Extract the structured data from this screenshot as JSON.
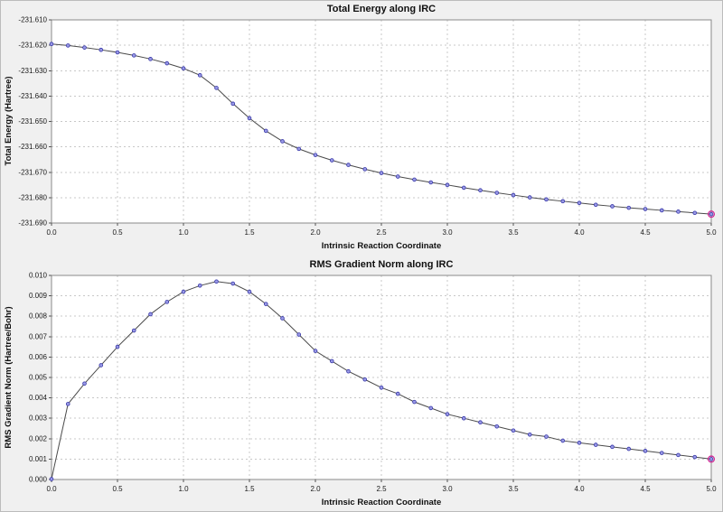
{
  "window": {
    "background": "#f0f0f0",
    "plot_background": "#ffffff",
    "grid_color": "#c8c8c8",
    "frame_color": "#8a8a8a"
  },
  "chart_data": [
    {
      "type": "line",
      "title": "Total Energy along IRC",
      "xlabel": "Intrinsic Reaction Coordinate",
      "ylabel": "Total Energy (Hartree)",
      "xlim": [
        0.0,
        5.0
      ],
      "ylim": [
        -231.69,
        -231.61
      ],
      "xticks": [
        0.0,
        0.5,
        1.0,
        1.5,
        2.0,
        2.5,
        3.0,
        3.5,
        4.0,
        4.5,
        5.0
      ],
      "yticks": [
        -231.69,
        -231.68,
        -231.67,
        -231.66,
        -231.65,
        -231.64,
        -231.63,
        -231.62,
        -231.61
      ],
      "xtick_decimals": 1,
      "ytick_decimals": 3,
      "grid": true,
      "legend": "none",
      "line_color": "#4a4a4a",
      "marker_fill": "#9a9ae6",
      "marker_edge": "#3838a8",
      "last_point_color": "#d02090",
      "x": [
        0.0,
        0.125,
        0.25,
        0.375,
        0.5,
        0.625,
        0.75,
        0.875,
        1.0,
        1.125,
        1.25,
        1.375,
        1.5,
        1.625,
        1.75,
        1.875,
        2.0,
        2.125,
        2.25,
        2.375,
        2.5,
        2.625,
        2.75,
        2.875,
        3.0,
        3.125,
        3.25,
        3.375,
        3.5,
        3.625,
        3.75,
        3.875,
        4.0,
        4.125,
        4.25,
        4.375,
        4.5,
        4.625,
        4.75,
        4.875,
        5.0
      ],
      "y": [
        -231.6195,
        -231.6201,
        -231.6209,
        -231.6218,
        -231.6228,
        -231.624,
        -231.6254,
        -231.6271,
        -231.6291,
        -231.6318,
        -231.6368,
        -231.643,
        -231.6487,
        -231.6537,
        -231.6578,
        -231.6608,
        -231.6632,
        -231.6653,
        -231.6671,
        -231.6688,
        -231.6703,
        -231.6717,
        -231.6729,
        -231.674,
        -231.675,
        -231.6761,
        -231.6771,
        -231.6781,
        -231.679,
        -231.6799,
        -231.6807,
        -231.6814,
        -231.6821,
        -231.6828,
        -231.6834,
        -231.684,
        -231.6845,
        -231.685,
        -231.6855,
        -231.686,
        -231.6865
      ]
    },
    {
      "type": "line",
      "title": "RMS Gradient Norm along IRC",
      "xlabel": "Intrinsic Reaction Coordinate",
      "ylabel": "RMS Gradient Norm (Hartree/Bohr)",
      "xlim": [
        0.0,
        5.0
      ],
      "ylim": [
        0.0,
        0.01
      ],
      "xticks": [
        0.0,
        0.5,
        1.0,
        1.5,
        2.0,
        2.5,
        3.0,
        3.5,
        4.0,
        4.5,
        5.0
      ],
      "yticks": [
        0.0,
        0.001,
        0.002,
        0.003,
        0.004,
        0.005,
        0.006,
        0.007,
        0.008,
        0.009,
        0.01
      ],
      "xtick_decimals": 1,
      "ytick_decimals": 3,
      "grid": true,
      "legend": "none",
      "line_color": "#4a4a4a",
      "marker_fill": "#9a9ae6",
      "marker_edge": "#3838a8",
      "last_point_color": "#d02090",
      "x": [
        0.0,
        0.125,
        0.25,
        0.375,
        0.5,
        0.625,
        0.75,
        0.875,
        1.0,
        1.125,
        1.25,
        1.375,
        1.5,
        1.625,
        1.75,
        1.875,
        2.0,
        2.125,
        2.25,
        2.375,
        2.5,
        2.625,
        2.75,
        2.875,
        3.0,
        3.125,
        3.25,
        3.375,
        3.5,
        3.625,
        3.75,
        3.875,
        4.0,
        4.125,
        4.25,
        4.375,
        4.5,
        4.625,
        4.75,
        4.875,
        5.0
      ],
      "y": [
        2e-05,
        0.0037,
        0.0047,
        0.0056,
        0.0065,
        0.0073,
        0.0081,
        0.0087,
        0.0092,
        0.0095,
        0.0097,
        0.0096,
        0.0092,
        0.0086,
        0.0079,
        0.0071,
        0.0063,
        0.0058,
        0.0053,
        0.0049,
        0.0045,
        0.0042,
        0.0038,
        0.0035,
        0.0032,
        0.003,
        0.0028,
        0.0026,
        0.0024,
        0.0022,
        0.0021,
        0.0019,
        0.0018,
        0.0017,
        0.0016,
        0.0015,
        0.0014,
        0.0013,
        0.0012,
        0.0011,
        0.001
      ]
    }
  ]
}
